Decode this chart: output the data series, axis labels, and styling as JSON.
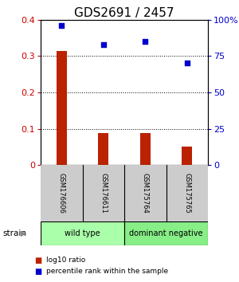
{
  "title": "GDS2691 / 2457",
  "samples": [
    "GSM176606",
    "GSM176611",
    "GSM175764",
    "GSM175765"
  ],
  "log10_ratio": [
    0.315,
    0.088,
    0.088,
    0.05
  ],
  "percentile_rank_pct": [
    96,
    83,
    85,
    70
  ],
  "bar_color": "#bb2200",
  "dot_color": "#0000cc",
  "ylim_left": [
    0,
    0.4
  ],
  "ylim_right": [
    0,
    100
  ],
  "yticks_left": [
    0,
    0.1,
    0.2,
    0.3,
    0.4
  ],
  "ytick_labels_left": [
    "0",
    "0.1",
    "0.2",
    "0.3",
    "0.4"
  ],
  "yticks_right": [
    0,
    25,
    50,
    75,
    100
  ],
  "ytick_labels_right": [
    "0",
    "25",
    "50",
    "75",
    "100%"
  ],
  "groups": [
    {
      "label": "wild type",
      "samples": [
        0,
        1
      ],
      "color": "#aaffaa"
    },
    {
      "label": "dominant negative",
      "samples": [
        2,
        3
      ],
      "color": "#88ee88"
    }
  ],
  "strain_label": "strain",
  "legend_bar_label": "log10 ratio",
  "legend_dot_label": "percentile rank within the sample",
  "background_color": "#ffffff",
  "tick_color_left": "#cc0000",
  "tick_color_right": "#0000cc",
  "title_fontsize": 11,
  "axis_fontsize": 8,
  "sample_box_color": "#cccccc",
  "sample_box_edge": "#000000",
  "bar_width": 0.25
}
